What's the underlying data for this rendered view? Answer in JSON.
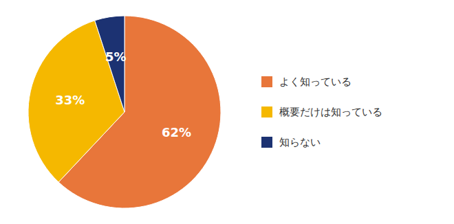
{
  "chart_data": {
    "type": "pie",
    "categories": [
      "よく知っている",
      "概要だけは知っている",
      "知らない"
    ],
    "values": [
      62,
      33,
      5
    ],
    "value_labels": [
      "62%",
      "33%",
      "5%"
    ],
    "colors": [
      "#E8763A",
      "#F5B800",
      "#1C3272"
    ],
    "data_labels": true,
    "legend": "right"
  }
}
